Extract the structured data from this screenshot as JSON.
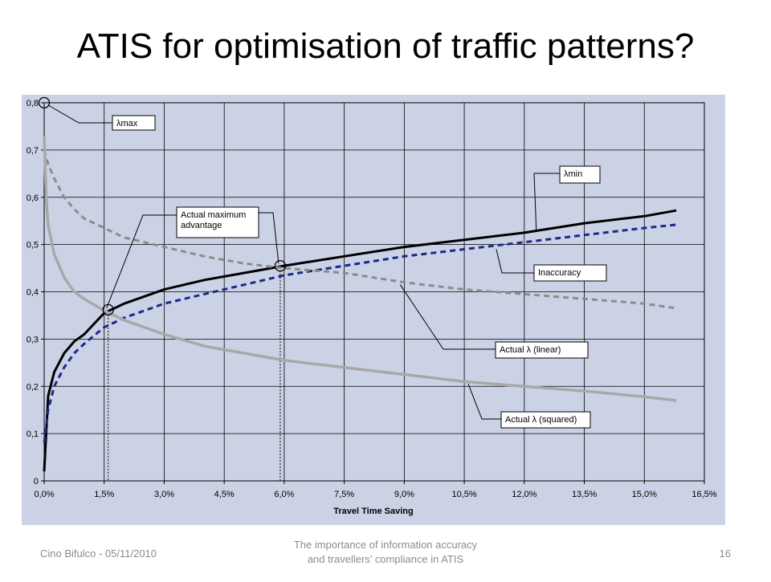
{
  "slide": {
    "title": "ATIS for optimisation of traffic patterns?",
    "footer_left": "Cino Bifulco - 05/11/2010",
    "footer_center_line1": "The importance of information accuracy",
    "footer_center_line2": "and travellers’ compliance in ATIS",
    "page_number": "16"
  },
  "colors": {
    "plot_background": "#ccd2e6",
    "lambda_min": "#000000",
    "actual_linear": "#1a2a8c",
    "inaccuracy": "#8c8c8c",
    "actual_squared": "#a8a8a8"
  },
  "chart_data": {
    "type": "line",
    "xlabel": "Travel Time Saving",
    "ylabel": "",
    "xlim": [
      0,
      16.5
    ],
    "ylim": [
      0,
      0.8
    ],
    "x_ticks": [
      0,
      1.5,
      3,
      4.5,
      6,
      7.5,
      9,
      10.5,
      12,
      13.5,
      15,
      16.5
    ],
    "x_tick_labels": [
      "0,0%",
      "1,5%",
      "3,0%",
      "4,5%",
      "6,0%",
      "7,5%",
      "9,0%",
      "10,5%",
      "12,0%",
      "13,5%",
      "15,0%",
      "16,5%"
    ],
    "y_ticks": [
      0,
      0.1,
      0.2,
      0.3,
      0.4,
      0.5,
      0.6,
      0.7,
      0.8
    ],
    "y_tick_labels": [
      "0",
      "0,1",
      "0,2",
      "0,3",
      "0,4",
      "0,5",
      "0,6",
      "0,7",
      "0,8"
    ],
    "grid": true,
    "series": [
      {
        "name": "λmin",
        "style": "solid",
        "color": "#000000",
        "x": [
          0,
          0.1,
          0.25,
          0.5,
          0.75,
          1,
          1.5,
          2,
          3,
          4,
          5,
          6,
          7.5,
          9,
          10.5,
          12,
          13.5,
          15,
          15.8
        ],
        "y": [
          0.02,
          0.18,
          0.23,
          0.27,
          0.295,
          0.31,
          0.355,
          0.375,
          0.405,
          0.425,
          0.44,
          0.455,
          0.475,
          0.495,
          0.51,
          0.525,
          0.545,
          0.56,
          0.572
        ]
      },
      {
        "name": "Actual λ (linear)",
        "style": "dashed",
        "color": "#1a2a8c",
        "x": [
          0,
          0.1,
          0.25,
          0.5,
          0.75,
          1,
          1.5,
          2,
          3,
          4,
          5,
          6,
          7.5,
          9,
          10.5,
          12,
          13.5,
          15,
          15.8
        ],
        "y": [
          0.08,
          0.15,
          0.2,
          0.24,
          0.27,
          0.29,
          0.325,
          0.345,
          0.375,
          0.395,
          0.415,
          0.435,
          0.455,
          0.475,
          0.49,
          0.505,
          0.52,
          0.535,
          0.542
        ]
      },
      {
        "name": "Inaccuracy",
        "style": "dashed",
        "color": "#8c8c8c",
        "x": [
          0,
          0.1,
          0.25,
          0.5,
          0.75,
          1,
          1.5,
          2,
          3,
          4,
          5,
          6,
          7.5,
          9,
          10.5,
          12,
          13.5,
          15,
          15.8
        ],
        "y": [
          0.7,
          0.67,
          0.64,
          0.6,
          0.575,
          0.555,
          0.535,
          0.515,
          0.495,
          0.475,
          0.46,
          0.45,
          0.44,
          0.42,
          0.405,
          0.395,
          0.385,
          0.375,
          0.365
        ]
      },
      {
        "name": "Actual λ (squared)",
        "style": "solid",
        "color": "#a8a8a8",
        "x": [
          0,
          0.05,
          0.1,
          0.25,
          0.5,
          0.75,
          1,
          1.5,
          2,
          3,
          4,
          5,
          6,
          7.5,
          9,
          10.5,
          12,
          13.5,
          15,
          15.8
        ],
        "y": [
          0.73,
          0.6,
          0.54,
          0.48,
          0.43,
          0.4,
          0.385,
          0.36,
          0.34,
          0.31,
          0.285,
          0.27,
          0.255,
          0.24,
          0.225,
          0.21,
          0.2,
          0.19,
          0.178,
          0.17
        ]
      }
    ],
    "markers": [
      {
        "x": 0,
        "y": 0.8
      },
      {
        "x": 1.6,
        "y": 0.362
      },
      {
        "x": 5.9,
        "y": 0.455
      }
    ],
    "drop_lines_x": [
      1.6,
      5.9
    ],
    "annotations": [
      {
        "id": "lambda-max",
        "text": "λmax"
      },
      {
        "id": "lambda-min",
        "text": "λmin"
      },
      {
        "id": "actual-max",
        "text1": "Actual maximum",
        "text2": "advantage"
      },
      {
        "id": "inaccuracy",
        "text": "Inaccuracy"
      },
      {
        "id": "actual-linear",
        "text": "Actual λ (linear)"
      },
      {
        "id": "actual-squared",
        "text": "Actual λ (squared)"
      }
    ]
  }
}
